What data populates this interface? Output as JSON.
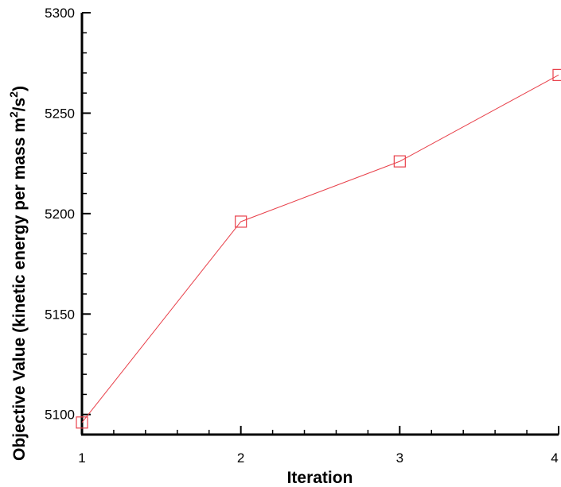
{
  "chart_data": {
    "type": "line",
    "x": [
      1,
      2,
      3,
      4
    ],
    "series": [
      {
        "values": [
          5096,
          5196,
          5226,
          5269
        ],
        "color": "#e8404a",
        "marker": "square"
      }
    ],
    "xlabel": "Iteration",
    "ylabel": "Objective Value (kinetic energy per mass m",
    "ylabel_sup1": "2",
    "ylabel_mid": "/s",
    "ylabel_sup2": "2",
    "ylabel_end": ")",
    "xlim": [
      1,
      4
    ],
    "ylim": [
      5090,
      5300
    ],
    "xticks": [
      "1",
      "2",
      "3",
      "4"
    ],
    "yticks": [
      "5100",
      "5150",
      "5200",
      "5250",
      "5300"
    ],
    "grid": false
  }
}
